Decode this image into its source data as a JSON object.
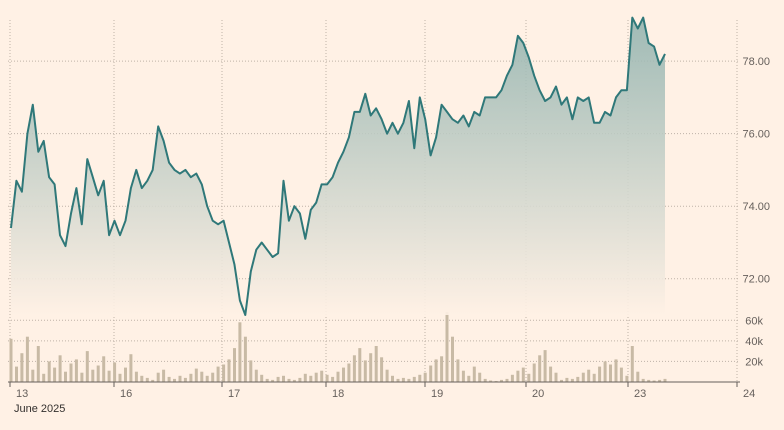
{
  "chart_data": [
    {
      "type": "area",
      "title": "",
      "xlabel": "",
      "ylabel": "",
      "ylim": [
        71.0,
        79.3
      ],
      "y_ticks": [
        72.0,
        74.0,
        76.0,
        78.0
      ],
      "y_tick_labels": [
        "72.00",
        "74.00",
        "76.00",
        "78.00"
      ],
      "grid": true,
      "x_tick_labels": [
        "13",
        "16",
        "17",
        "18",
        "19",
        "20",
        "23",
        "24"
      ],
      "x_sublabel": "June 2025",
      "series": [
        {
          "values": [
            73.4,
            74.7,
            74.4,
            76.0,
            76.8,
            75.5,
            75.8,
            74.8,
            74.6,
            73.2,
            72.9,
            73.8,
            74.5,
            73.5,
            75.3,
            74.8,
            74.3,
            74.7,
            73.2,
            73.6,
            73.2,
            73.6,
            74.5,
            75.0,
            74.5,
            74.7,
            75.0,
            76.2,
            75.8,
            75.2,
            75.0,
            74.9,
            75.0,
            74.8,
            74.9,
            74.6,
            74.0,
            73.6,
            73.5,
            73.6,
            73.0,
            72.4,
            71.4,
            71.0,
            72.2,
            72.8,
            73.0,
            72.8,
            72.6,
            72.7,
            74.7,
            73.6,
            74.0,
            73.8,
            73.1,
            73.9,
            74.1,
            74.6,
            74.6,
            74.8,
            75.2,
            75.5,
            75.9,
            76.6,
            76.6,
            77.1,
            76.5,
            76.7,
            76.4,
            76.0,
            76.3,
            76.0,
            76.3,
            76.9,
            75.6,
            77.0,
            76.4,
            75.4,
            75.9,
            76.8,
            76.6,
            76.4,
            76.3,
            76.5,
            76.2,
            76.6,
            76.5,
            77.0,
            77.0,
            77.0,
            77.2,
            77.6,
            77.9,
            78.7,
            78.5,
            78.1,
            77.6,
            77.2,
            76.9,
            77.0,
            77.3,
            76.8,
            77.0,
            76.4,
            77.0,
            76.9,
            77.0,
            76.3,
            76.3,
            76.6,
            76.5,
            77.0,
            77.2,
            77.2,
            79.2,
            78.9,
            79.2,
            78.5,
            78.4,
            77.9,
            78.2
          ],
          "volumes": [
            42000,
            15000,
            28000,
            44000,
            12000,
            35000,
            8000,
            20000,
            14000,
            26000,
            10000,
            18000,
            22000,
            9000,
            30000,
            12000,
            16000,
            25000,
            11000,
            19000,
            8000,
            14000,
            27000,
            10000,
            6000,
            4000,
            2000,
            9000,
            12000,
            5000,
            3000,
            6000,
            4000,
            8000,
            13000,
            10000,
            6000,
            9000,
            15000,
            17000,
            22000,
            33000,
            58000,
            44000,
            21000,
            12000,
            7000,
            3000,
            2000,
            5000,
            6000,
            3000,
            2000,
            4000,
            8000,
            6000,
            9000,
            11000,
            7000,
            5000,
            10000,
            14000,
            18000,
            26000,
            33000,
            21000,
            28000,
            35000,
            24000,
            12000,
            6000,
            3000,
            4000,
            3000,
            5000,
            7000,
            9000,
            16000,
            22000,
            25000,
            68000,
            44000,
            22000,
            11000,
            6000,
            15000,
            9000,
            3000,
            1500,
            1000,
            2000,
            3000,
            7000,
            11000,
            14000,
            8000,
            18000,
            26000,
            31000,
            15000,
            9000,
            2000,
            4000,
            3000,
            5000,
            9000,
            12000,
            8000,
            15000,
            20000,
            17000,
            22000,
            14000,
            6000,
            35000,
            10000,
            3000,
            2000,
            1500,
            2000,
            3000
          ]
        }
      ],
      "volume_ticks": [
        20000,
        40000,
        60000
      ],
      "volume_tick_labels": [
        "20k",
        "40k",
        "60k"
      ],
      "colors": {
        "line": "#2f7879",
        "area_top": "#8fb1ad",
        "volume": "#c8baa5",
        "grid": "#bfb3a8",
        "background": "#fff1e5"
      }
    }
  ]
}
